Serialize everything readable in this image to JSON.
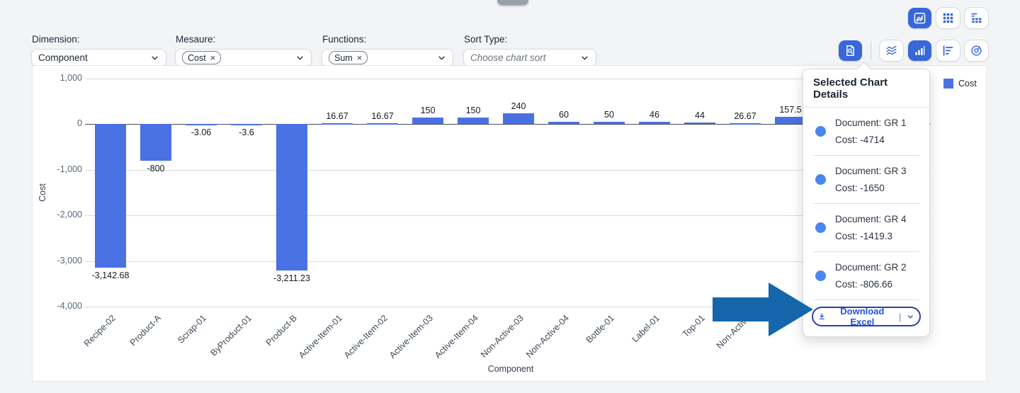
{
  "toolbars": {
    "view_switcher": [
      {
        "icon": "combo-chart-icon",
        "active": true
      },
      {
        "icon": "grid-table-icon",
        "active": false
      },
      {
        "icon": "pivot-table-icon",
        "active": false
      }
    ],
    "chart_toolbar": {
      "inspect": {
        "icon": "document-search-icon",
        "active": true
      },
      "types": [
        {
          "icon": "line-chart-icon",
          "active": false
        },
        {
          "icon": "bar-chart-icon",
          "active": true
        },
        {
          "icon": "horizontal-bar-chart-icon",
          "active": false
        },
        {
          "icon": "donut-chart-icon",
          "active": false
        }
      ]
    }
  },
  "filters": {
    "dimension": {
      "label": "Dimension:",
      "value": "Component"
    },
    "measure": {
      "label": "Mesaure:",
      "token": "Cost",
      "remove_glyph": "×"
    },
    "functions": {
      "label": "Functions:",
      "token": "Sum",
      "remove_glyph": "×"
    },
    "sort": {
      "label": "Sort Type:",
      "placeholder": "Choose chart sort"
    }
  },
  "legend": {
    "label": "Cost",
    "color": "#4a71e4"
  },
  "chart_data": {
    "type": "bar",
    "series_name": "Cost",
    "xlabel": "Component",
    "ylabel": "Cost",
    "ylim": [
      -4000,
      1000
    ],
    "yticks": [
      1000,
      0,
      -1000,
      -2000,
      -3000,
      -4000
    ],
    "ytick_labels": [
      "1,000",
      "0",
      "-1,000",
      "-2,000",
      "-3,000",
      "-4,000"
    ],
    "grid": true,
    "legend_position": "top-right",
    "bar_color": "#4a71e4",
    "categories": [
      "Recipe-02",
      "Product-A",
      "Scrap-01",
      "ByProduct-01",
      "Product-B",
      "Active-Item-01",
      "Active-Item-02",
      "Active-Item-03",
      "Active-Item-04",
      "Non-Active-03",
      "Non-Active-04",
      "Bottle-01",
      "Label-01",
      "Top-01",
      "Non-Active",
      ""
    ],
    "values": [
      -3142.68,
      -800,
      -3.06,
      -3.6,
      -3211.23,
      16.67,
      16.67,
      150,
      150,
      240,
      60,
      50,
      46,
      44,
      26.67,
      157.5
    ],
    "value_labels": [
      "-3,142.68",
      "-800",
      "-3.06",
      "-3.6",
      "-3,211.23",
      "16.67",
      "16.67",
      "150",
      "150",
      "240",
      "60",
      "50",
      "46",
      "44",
      "26.67",
      "157.5"
    ]
  },
  "popup": {
    "title": "Selected Chart Details",
    "dot_color": "#4a86ef",
    "items": [
      {
        "document": "Document: GR 1",
        "cost": "Cost: -4714"
      },
      {
        "document": "Document: GR 3",
        "cost": "Cost: -1650"
      },
      {
        "document": "Document: GR 4",
        "cost": "Cost: -1419.3"
      },
      {
        "document": "Document: GR 2",
        "cost": "Cost: -806.66"
      }
    ],
    "download_label": "Download Excel",
    "download_separator": "|"
  },
  "annotation": {
    "arrow_color": "#1566aa"
  }
}
